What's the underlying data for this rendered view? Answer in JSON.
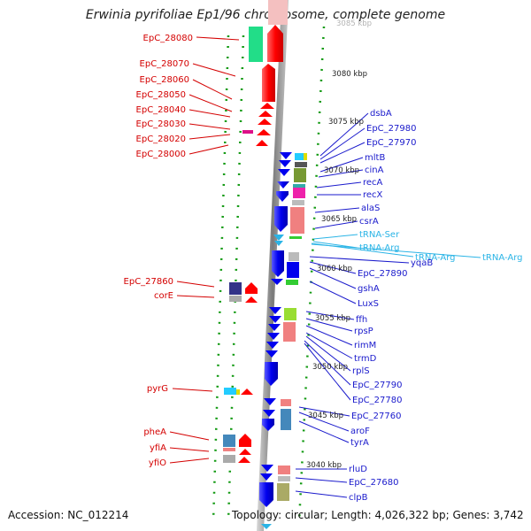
{
  "title": "Erwinia pyrifoliae Ep1/96 chromosome, complete genome",
  "footer": {
    "accession": "Accession: NC_012214",
    "stats": "Topology: circular; Length: 4,026,322 bp; Genes: 3,742"
  },
  "colors": {
    "forward_gene": "#ff0000",
    "reverse_gene": "#0000ee",
    "rna": "#2ab4e6",
    "left_label": "#d40000",
    "right_label": "#1a1acc",
    "backbone": "#888888",
    "tick": "#119911"
  },
  "scale": [
    "3085 kbp",
    "3080 kbp",
    "3075 kbp",
    "3070 kbp",
    "3065 kbp",
    "3060 kbp",
    "3055 kbp",
    "3050 kbp",
    "3045 kbp",
    "3040 kbp"
  ],
  "left_labels": [
    "EpC_28080",
    "EpC_28070",
    "EpC_28060",
    "EpC_28050",
    "EpC_28040",
    "EpC_28030",
    "EpC_28020",
    "EpC_28000",
    "EpC_27860",
    "corE",
    "pyrG",
    "pheA",
    "yfiA",
    "yfiO"
  ],
  "right_labels": [
    "dsbA",
    "EpC_27980",
    "EpC_27970",
    "mltB",
    "cinA",
    "recA",
    "recX",
    "alaS",
    "csrA",
    "tRNA-Ser",
    "tRNA-Arg",
    "tRNA-Arg",
    "tRNA-Arg",
    "yqaB",
    "EpC_27890",
    "gshA",
    "LuxS",
    "ffh",
    "rpsP",
    "rimM",
    "trmD",
    "rplS",
    "EpC_27790",
    "EpC_27780",
    "EpC_27760",
    "aroF",
    "tyrA",
    "rluD",
    "EpC_27680",
    "clpB"
  ]
}
